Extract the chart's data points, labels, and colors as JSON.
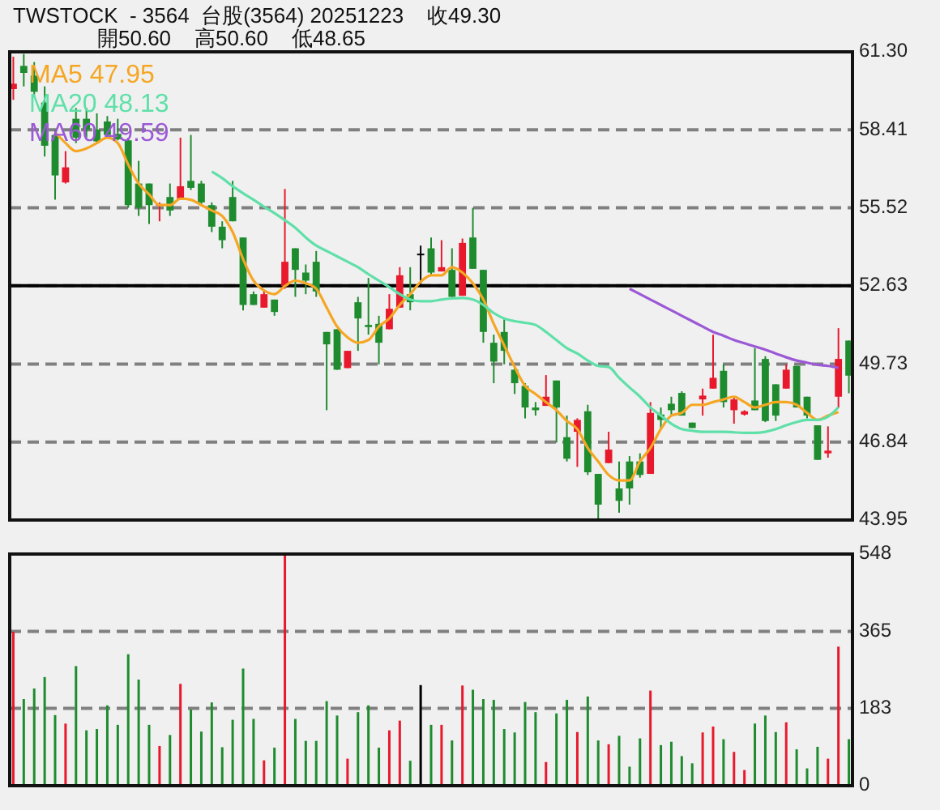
{
  "chart_data": [
    {
      "type": "candlestick",
      "title": "TWSTOCK  - 3564  台股(3564) 20251223    收49.30",
      "subtitle": "開50.60    高50.60    低48.65",
      "categories": [
        null,
        null,
        null,
        null,
        null,
        null,
        null,
        null,
        null,
        null,
        null,
        null,
        null,
        null,
        null,
        null,
        null,
        null,
        null,
        null,
        null,
        null,
        null,
        null,
        null,
        null,
        null,
        null,
        null,
        null,
        null,
        null,
        null,
        null,
        null,
        null,
        null,
        null,
        null,
        null,
        null,
        null,
        null,
        null,
        null,
        null,
        null,
        null,
        null,
        null,
        null,
        null,
        null,
        null,
        null,
        null,
        null,
        null,
        null,
        null,
        null,
        null,
        null,
        null,
        null,
        null,
        null,
        null,
        null,
        null,
        null,
        null,
        null,
        null,
        null,
        null,
        null,
        null,
        null,
        null,
        null
      ],
      "ohlc": [
        [
          59.92,
          61.12,
          59.52,
          60.12
        ],
        [
          60.78,
          61.22,
          60.02,
          60.52
        ],
        [
          60.42,
          60.92,
          59.62,
          59.82
        ],
        [
          59.42,
          60.02,
          57.42,
          57.82
        ],
        [
          58.22,
          58.42,
          55.82,
          56.72
        ],
        [
          56.46,
          57.62,
          56.42,
          57.02
        ],
        [
          58.82,
          59.22,
          57.92,
          58.12
        ],
        [
          58.82,
          59.22,
          58.12,
          58.42
        ],
        [
          58.42,
          59.02,
          57.92,
          57.98
        ],
        [
          58.72,
          58.92,
          58.12,
          58.22
        ],
        [
          58.26,
          58.82,
          58.02,
          58.06
        ],
        [
          58.02,
          58.12,
          55.52,
          55.62
        ],
        [
          56.42,
          57.26,
          55.22,
          55.52
        ],
        [
          56.42,
          56.42,
          54.92,
          55.62
        ],
        [
          55.62,
          55.72,
          55.02,
          55.66
        ],
        [
          55.92,
          56.42,
          55.22,
          55.42
        ],
        [
          55.86,
          58.12,
          55.82,
          56.32
        ],
        [
          56.52,
          58.22,
          56.18,
          56.26
        ],
        [
          56.42,
          56.52,
          55.62,
          55.72
        ],
        [
          55.62,
          55.72,
          54.62,
          54.82
        ],
        [
          54.82,
          55.02,
          54.02,
          54.32
        ],
        [
          55.92,
          56.52,
          55.02,
          55.02
        ],
        [
          54.42,
          54.42,
          51.72,
          51.92
        ],
        [
          52.32,
          52.42,
          51.92,
          51.92
        ],
        [
          51.82,
          52.42,
          51.82,
          52.32
        ],
        [
          52.12,
          52.12,
          51.52,
          51.66
        ],
        [
          52.62,
          56.22,
          52.52,
          53.52
        ],
        [
          54.02,
          54.02,
          52.22,
          53.22
        ],
        [
          53.12,
          53.42,
          52.32,
          52.82
        ],
        [
          53.52,
          53.92,
          52.22,
          52.42
        ],
        [
          50.92,
          50.92,
          48.02,
          50.46
        ],
        [
          51.02,
          51.02,
          49.52,
          49.52
        ],
        [
          49.58,
          50.22,
          49.58,
          50.22
        ],
        [
          52.02,
          52.22,
          50.22,
          51.42
        ],
        [
          51.18,
          52.92,
          50.82,
          51.1
        ],
        [
          51.22,
          51.52,
          49.72,
          50.52
        ],
        [
          51.02,
          52.32,
          51.02,
          51.78
        ],
        [
          51.82,
          53.32,
          51.82,
          53.02
        ],
        [
          52.32,
          53.32,
          51.72,
          52.02
        ],
        [
          53.82,
          54.12,
          52.62,
          53.82
        ],
        [
          54.02,
          54.42,
          53.02,
          53.12
        ],
        [
          53.16,
          54.32,
          53.16,
          53.32
        ],
        [
          53.22,
          54.02,
          52.22,
          52.22
        ],
        [
          52.26,
          54.38,
          52.26,
          54.22
        ],
        [
          54.42,
          55.52,
          53.26,
          53.26
        ],
        [
          53.22,
          53.22,
          50.52,
          50.92
        ],
        [
          50.52,
          50.82,
          49.02,
          49.82
        ],
        [
          50.92,
          51.42,
          49.72,
          50.22
        ],
        [
          49.52,
          49.62,
          48.62,
          49.02
        ],
        [
          48.92,
          49.02,
          47.72,
          48.12
        ],
        [
          48.12,
          48.32,
          47.82,
          48.02
        ],
        [
          48.18,
          49.32,
          48.18,
          48.52
        ],
        [
          49.12,
          49.12,
          46.82,
          48.12
        ],
        [
          47.02,
          47.82,
          46.12,
          46.22
        ],
        [
          47.22,
          47.72,
          45.92,
          47.66
        ],
        [
          47.98,
          48.22,
          45.62,
          45.72
        ],
        [
          45.66,
          45.66,
          43.98,
          44.52
        ],
        [
          46.06,
          47.22,
          46.06,
          46.56
        ],
        [
          45.12,
          46.12,
          44.22,
          44.66
        ],
        [
          46.12,
          46.32,
          44.52,
          45.12
        ],
        [
          46.12,
          46.42,
          45.52,
          45.62
        ],
        [
          45.66,
          48.32,
          45.66,
          47.92
        ],
        [
          47.86,
          48.12,
          47.32,
          47.66
        ],
        [
          48.26,
          48.52,
          47.86,
          48.02
        ],
        [
          48.66,
          48.72,
          47.82,
          47.82
        ],
        [
          47.56,
          47.56,
          47.36,
          47.36
        ],
        [
          48.42,
          48.82,
          47.82,
          48.56
        ],
        [
          48.82,
          50.82,
          48.82,
          49.22
        ],
        [
          49.48,
          49.72,
          48.12,
          48.32
        ],
        [
          48.02,
          48.52,
          47.52,
          48.42
        ],
        [
          47.86,
          48.02,
          47.82,
          47.98
        ],
        [
          48.38,
          50.32,
          48.02,
          48.02
        ],
        [
          49.92,
          50.02,
          47.58,
          47.62
        ],
        [
          48.98,
          48.98,
          47.62,
          47.82
        ],
        [
          48.82,
          49.72,
          48.82,
          49.52
        ],
        [
          49.66,
          49.66,
          48.12,
          48.12
        ],
        [
          48.52,
          48.52,
          47.72,
          47.82
        ],
        [
          47.46,
          47.46,
          46.18,
          46.18
        ],
        [
          46.42,
          47.42,
          46.26,
          46.52
        ],
        [
          48.52,
          51.06,
          48.12,
          49.92
        ],
        [
          50.6,
          50.6,
          48.65,
          49.3
        ]
      ],
      "colors": [
        "#e8192c",
        "#1e8c2e",
        "#1e8c2e",
        "#1e8c2e",
        "#1e8c2e",
        "#e8192c",
        "#1e8c2e",
        "#1e8c2e",
        "#1e8c2e",
        "#1e8c2e",
        "#1e8c2e",
        "#1e8c2e",
        "#1e8c2e",
        "#1e8c2e",
        "#e8192c",
        "#1e8c2e",
        "#e8192c",
        "#1e8c2e",
        "#1e8c2e",
        "#1e8c2e",
        "#1e8c2e",
        "#1e8c2e",
        "#1e8c2e",
        "#1e8c2e",
        "#e8192c",
        "#1e8c2e",
        "#e8192c",
        "#1e8c2e",
        "#1e8c2e",
        "#1e8c2e",
        "#1e8c2e",
        "#1e8c2e",
        "#e8192c",
        "#1e8c2e",
        "#1e8c2e",
        "#1e8c2e",
        "#e8192c",
        "#e8192c",
        "#1e8c2e",
        "#000000",
        "#1e8c2e",
        "#e8192c",
        "#1e8c2e",
        "#e8192c",
        "#1e8c2e",
        "#1e8c2e",
        "#1e8c2e",
        "#1e8c2e",
        "#1e8c2e",
        "#1e8c2e",
        "#1e8c2e",
        "#e8192c",
        "#1e8c2e",
        "#1e8c2e",
        "#e8192c",
        "#1e8c2e",
        "#1e8c2e",
        "#e8192c",
        "#1e8c2e",
        "#1e8c2e",
        "#1e8c2e",
        "#e8192c",
        "#1e8c2e",
        "#1e8c2e",
        "#1e8c2e",
        "#1e8c2e",
        "#e8192c",
        "#e8192c",
        "#1e8c2e",
        "#e8192c",
        "#e8192c",
        "#1e8c2e",
        "#1e8c2e",
        "#1e8c2e",
        "#e8192c",
        "#1e8c2e",
        "#1e8c2e",
        "#1e8c2e",
        "#e8192c",
        "#e8192c",
        "#1e8c2e"
      ],
      "series": [
        {
          "name": "MA5 47.95",
          "type": "line",
          "color": "#f5a623",
          "values": [
            null,
            null,
            null,
            null,
            58.32,
            57.92,
            57.62,
            57.72,
            57.92,
            58.12,
            57.92,
            57.12,
            56.42,
            56.02,
            55.62,
            55.62,
            55.86,
            55.82,
            55.62,
            55.42,
            55.22,
            54.62,
            53.62,
            52.82,
            52.46,
            52.32,
            52.62,
            52.82,
            52.72,
            52.52,
            51.82,
            51.12,
            50.72,
            50.52,
            50.62,
            51.12,
            51.42,
            51.92,
            52.32,
            52.78,
            53.02,
            53.02,
            53.32,
            53.12,
            52.72,
            52.12,
            51.22,
            50.42,
            49.62,
            48.92,
            48.62,
            48.32,
            48.02,
            47.62,
            47.32,
            46.62,
            46.12,
            45.62,
            45.42,
            45.42,
            46.12,
            46.62,
            47.32,
            47.82,
            47.92,
            48.22,
            48.22,
            48.32,
            48.42,
            48.52,
            48.32,
            48.12,
            48.22,
            48.32,
            48.32,
            48.22,
            47.92,
            47.66,
            47.82,
            47.95,
            null
          ]
        },
        {
          "name": "MA20 48.13",
          "type": "line",
          "color": "#5fe0a8",
          "values": [
            null,
            null,
            null,
            null,
            null,
            null,
            null,
            null,
            null,
            null,
            null,
            null,
            null,
            null,
            null,
            null,
            null,
            null,
            null,
            56.86,
            56.62,
            56.32,
            56.06,
            55.82,
            55.56,
            55.32,
            55.06,
            54.78,
            54.42,
            54.12,
            53.92,
            53.72,
            53.52,
            53.32,
            53.06,
            52.82,
            52.58,
            52.32,
            52.12,
            52.06,
            52.06,
            52.12,
            52.16,
            52.18,
            52.12,
            51.92,
            51.62,
            51.42,
            51.32,
            51.26,
            51.18,
            50.92,
            50.62,
            50.32,
            50.12,
            49.86,
            49.66,
            49.62,
            49.22,
            48.86,
            48.52,
            48.12,
            47.82,
            47.52,
            47.32,
            47.26,
            47.22,
            47.22,
            47.22,
            47.2,
            47.18,
            47.18,
            47.22,
            47.32,
            47.46,
            47.58,
            47.66,
            47.66,
            47.78,
            48.13,
            null
          ]
        },
        {
          "name": "MA60 49.59",
          "type": "line",
          "color": "#9b59d6",
          "values": [
            null,
            null,
            null,
            null,
            null,
            null,
            null,
            null,
            null,
            null,
            null,
            null,
            null,
            null,
            null,
            null,
            null,
            null,
            null,
            null,
            null,
            null,
            null,
            null,
            null,
            null,
            null,
            null,
            null,
            null,
            null,
            null,
            null,
            null,
            null,
            null,
            null,
            null,
            null,
            null,
            null,
            null,
            null,
            null,
            null,
            null,
            null,
            null,
            null,
            null,
            null,
            null,
            null,
            null,
            null,
            null,
            null,
            null,
            null,
            52.52,
            52.32,
            52.12,
            51.92,
            51.72,
            51.52,
            51.32,
            51.12,
            50.92,
            50.78,
            50.62,
            50.5,
            50.38,
            50.26,
            50.12,
            49.98,
            49.86,
            49.78,
            49.7,
            49.66,
            49.59,
            null
          ]
        }
      ],
      "ylim": [
        43.95,
        61.3
      ],
      "yticks": [
        43.95,
        46.84,
        49.73,
        52.63,
        55.52,
        58.41,
        {
          "value": 61.3,
          "label": "61.30"
        }
      ],
      "grid": "y",
      "legend": "top left",
      "tick_labels": "y",
      "ref_lines": [
        {
          "axis": "y",
          "value": 52.63,
          "color": "#000000",
          "line_style": "solid"
        }
      ]
    },
    {
      "type": "bar",
      "categories": [
        null,
        null,
        null,
        null,
        null,
        null,
        null,
        null,
        null,
        null,
        null,
        null,
        null,
        null,
        null,
        null,
        null,
        null,
        null,
        null,
        null,
        null,
        null,
        null,
        null,
        null,
        null,
        null,
        null,
        null,
        null,
        null,
        null,
        null,
        null,
        null,
        null,
        null,
        null,
        null,
        null,
        null,
        null,
        null,
        null,
        null,
        null,
        null,
        null,
        null,
        null,
        null,
        null,
        null,
        null,
        null,
        null,
        null,
        null,
        null,
        null,
        null,
        null,
        null,
        null,
        null,
        null,
        null,
        null,
        null,
        null,
        null,
        null,
        null,
        null,
        null,
        null,
        null,
        null,
        null,
        null
      ],
      "values": [
        364,
        205,
        230,
        257,
        167,
        147,
        283,
        131,
        134,
        190,
        144,
        311,
        251,
        144,
        94,
        120,
        241,
        180,
        128,
        197,
        91,
        156,
        277,
        158,
        60,
        90,
        548,
        158,
        106,
        106,
        200,
        166,
        64,
        174,
        190,
        90,
        131,
        154,
        59,
        238,
        144,
        144,
        107,
        237,
        227,
        205,
        203,
        134,
        126,
        198,
        174,
        56,
        171,
        203,
        127,
        211,
        107,
        98,
        118,
        45,
        112,
        225,
        96,
        104,
        70,
        53,
        126,
        140,
        110,
        80,
        37,
        147,
        166,
        127,
        150,
        86,
        41,
        92,
        64,
        329,
        110
      ],
      "colors": [
        "#e8192c",
        "#1e8c2e",
        "#1e8c2e",
        "#1e8c2e",
        "#1e8c2e",
        "#e8192c",
        "#1e8c2e",
        "#1e8c2e",
        "#1e8c2e",
        "#1e8c2e",
        "#1e8c2e",
        "#1e8c2e",
        "#1e8c2e",
        "#1e8c2e",
        "#e8192c",
        "#1e8c2e",
        "#e8192c",
        "#1e8c2e",
        "#1e8c2e",
        "#1e8c2e",
        "#1e8c2e",
        "#1e8c2e",
        "#1e8c2e",
        "#1e8c2e",
        "#e8192c",
        "#1e8c2e",
        "#e8192c",
        "#1e8c2e",
        "#1e8c2e",
        "#1e8c2e",
        "#1e8c2e",
        "#1e8c2e",
        "#e8192c",
        "#1e8c2e",
        "#1e8c2e",
        "#1e8c2e",
        "#e8192c",
        "#e8192c",
        "#1e8c2e",
        "#000000",
        "#1e8c2e",
        "#e8192c",
        "#1e8c2e",
        "#e8192c",
        "#1e8c2e",
        "#1e8c2e",
        "#1e8c2e",
        "#1e8c2e",
        "#1e8c2e",
        "#1e8c2e",
        "#1e8c2e",
        "#e8192c",
        "#1e8c2e",
        "#1e8c2e",
        "#e8192c",
        "#1e8c2e",
        "#1e8c2e",
        "#e8192c",
        "#1e8c2e",
        "#1e8c2e",
        "#1e8c2e",
        "#e8192c",
        "#1e8c2e",
        "#1e8c2e",
        "#1e8c2e",
        "#1e8c2e",
        "#e8192c",
        "#e8192c",
        "#1e8c2e",
        "#e8192c",
        "#e8192c",
        "#1e8c2e",
        "#1e8c2e",
        "#1e8c2e",
        "#e8192c",
        "#1e8c2e",
        "#1e8c2e",
        "#1e8c2e",
        "#e8192c",
        "#e8192c",
        "#1e8c2e"
      ],
      "ylim": [
        0,
        548
      ],
      "yticks": [
        0,
        183,
        365,
        548
      ],
      "grid": "y",
      "tick_labels": "y"
    }
  ]
}
